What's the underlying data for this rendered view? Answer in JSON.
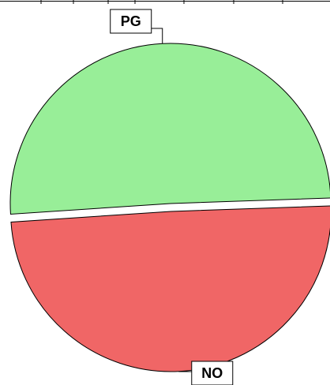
{
  "chart_data": {
    "type": "pie",
    "title": "",
    "categories": [
      "PG",
      "NO"
    ],
    "values": [
      50.5,
      49.5
    ],
    "colors": [
      "#98ee98",
      "#f06666"
    ],
    "exploded": [
      "NO"
    ],
    "legend": "none",
    "labels_style": "boxed callouts"
  }
}
